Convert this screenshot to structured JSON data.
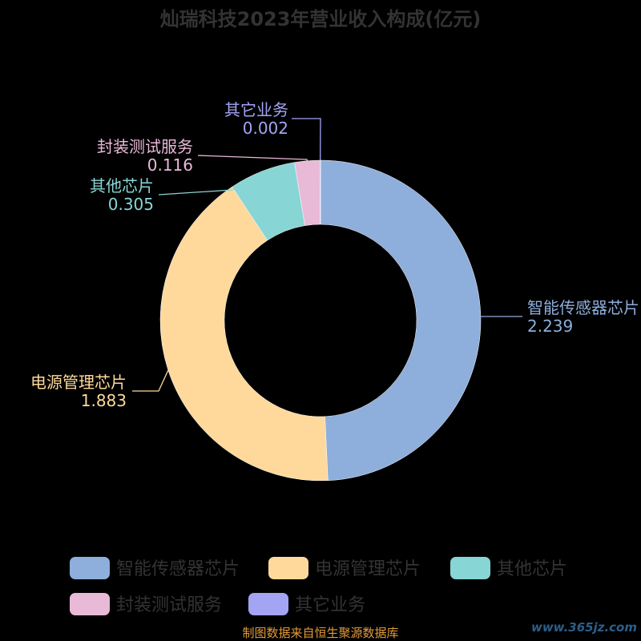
{
  "chart_data": {
    "type": "pie",
    "title": "灿瑞科技2023年营业收入构成(亿元)",
    "slices": [
      {
        "label": "智能传感器芯片",
        "value": 2.239,
        "value_text": "2.239",
        "color": "#8eaedb"
      },
      {
        "label": "电源管理芯片",
        "value": 1.883,
        "value_text": "1.883",
        "color": "#fed99b"
      },
      {
        "label": "其他芯片",
        "value": 0.305,
        "value_text": "0.305",
        "color": "#88d5d6"
      },
      {
        "label": "封装测试服务",
        "value": 0.116,
        "value_text": "0.116",
        "color": "#e8bad7"
      },
      {
        "label": "其它业务",
        "value": 0.002,
        "value_text": "0.002",
        "color": "#a4a4f4"
      }
    ],
    "legend_position": "bottom",
    "title_color": "#333333",
    "background": "#000000"
  },
  "footer": {
    "source": "制图数据来自恒生聚源数据库",
    "source_color": "#e39b3a",
    "watermark": "www.365jz.com",
    "watermark_color": "#2c5f8a"
  }
}
